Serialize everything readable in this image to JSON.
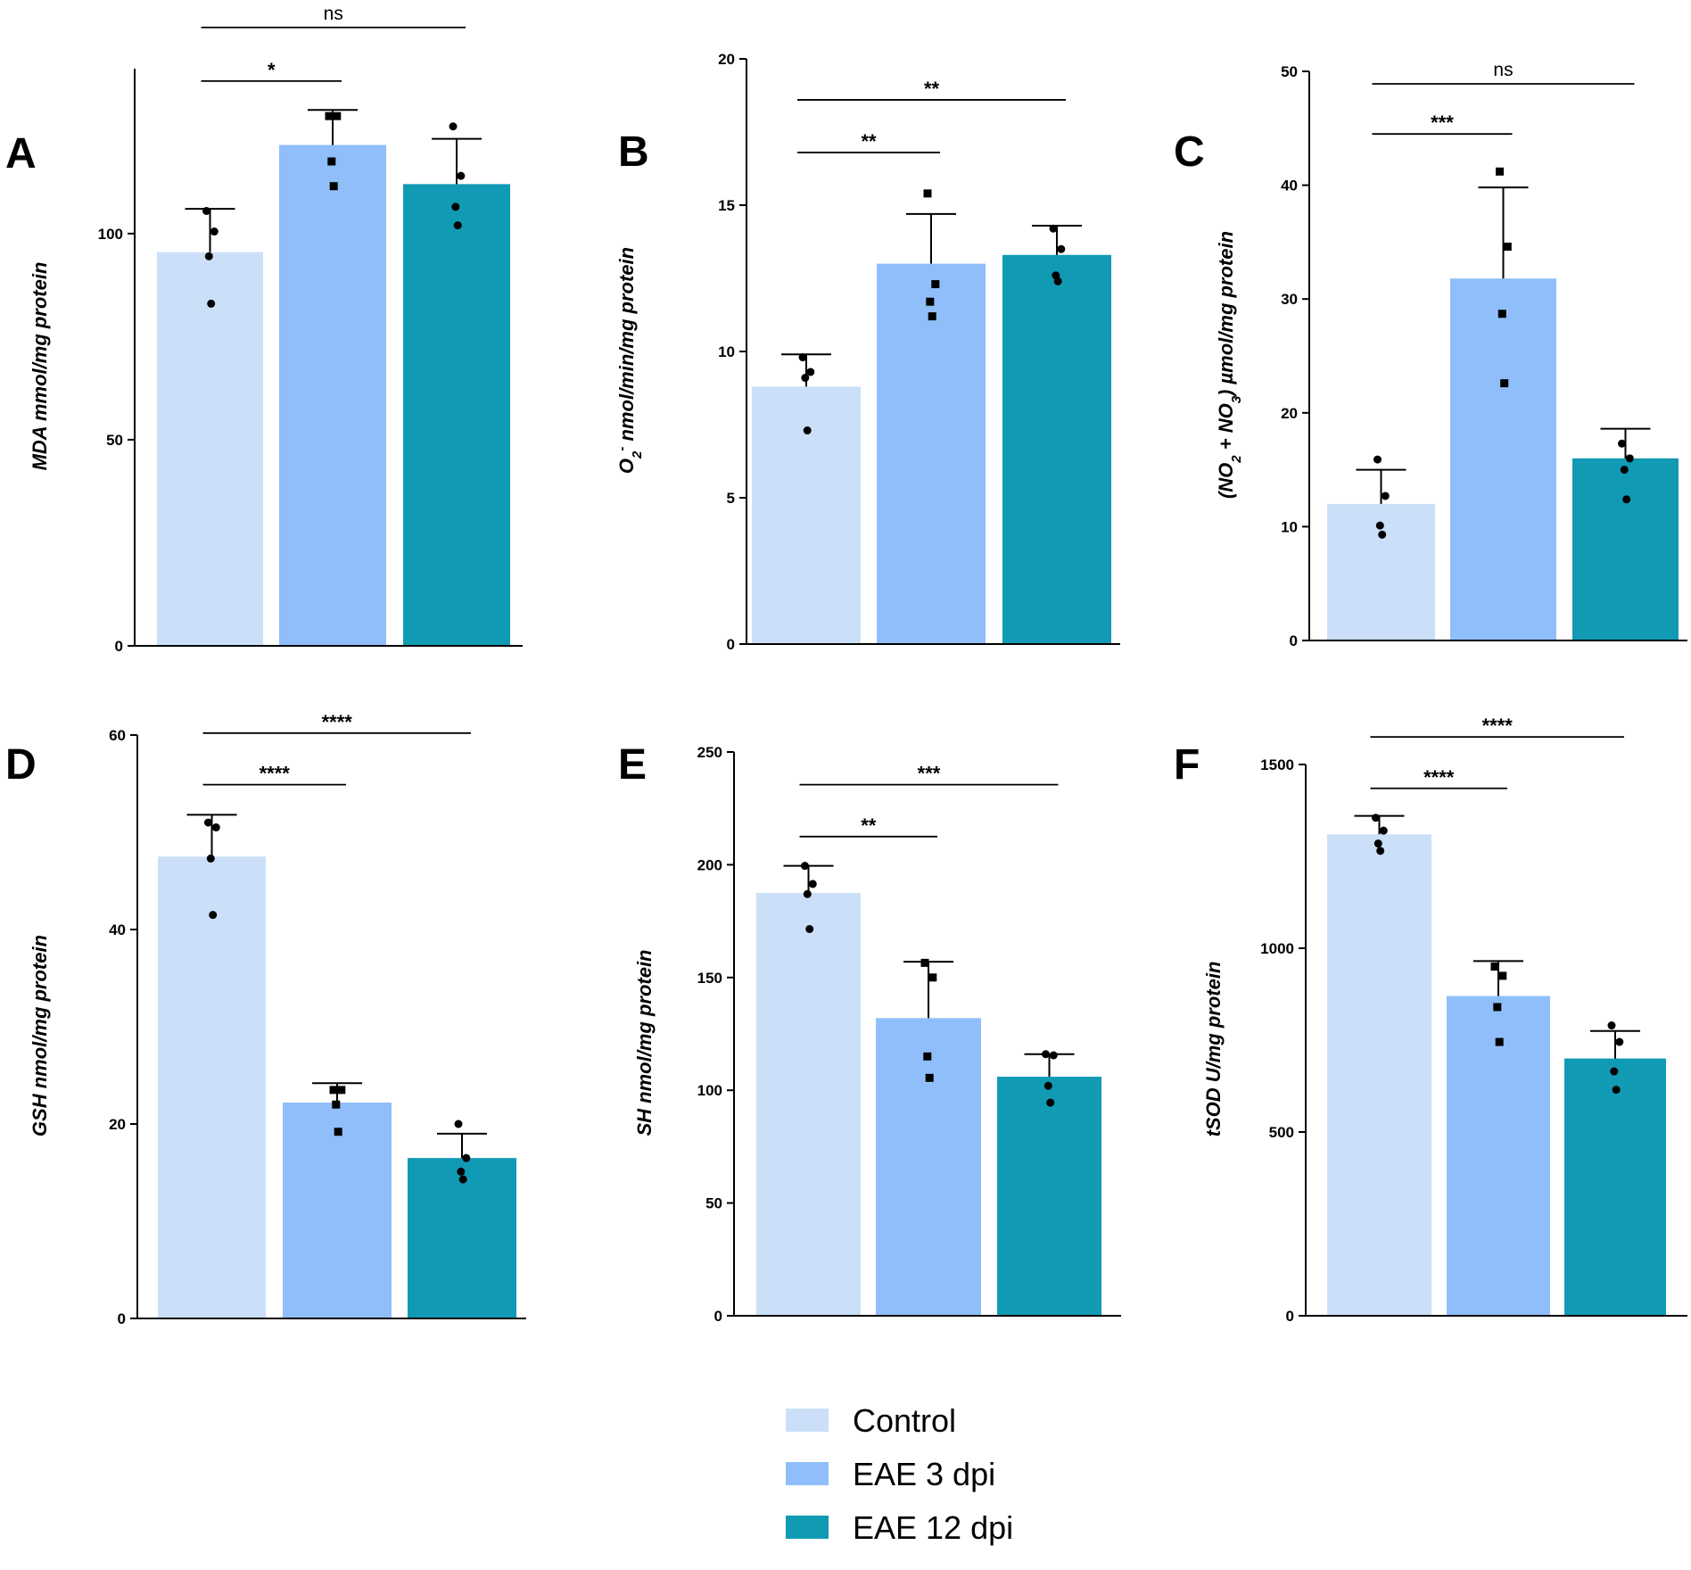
{
  "figure": {
    "legend": [
      {
        "label": "Control",
        "color": "#cbe0f8"
      },
      {
        "label": "EAE 3 dpi",
        "color": "#90befa"
      },
      {
        "label": "EAE 12 dpi",
        "color": "#119ab4"
      }
    ]
  },
  "chart_data": [
    {
      "panel": "A",
      "type": "bar",
      "ylabel_parts": [
        {
          "t": "MDA mmol/mg protein"
        }
      ],
      "ylim": [
        0,
        140
      ],
      "yticks": [
        0,
        50,
        100
      ],
      "categories": [
        "Control",
        "EAE 3 dpi",
        "EAE 12 dpi"
      ],
      "values": [
        95.5,
        121.5,
        112.0
      ],
      "errors": [
        10.5,
        8.5,
        11.0
      ],
      "points": [
        [
          105.5,
          100.5,
          94.5,
          83.0
        ],
        [
          128.5,
          128.5,
          117.5,
          111.5
        ],
        [
          126.0,
          114.0,
          106.5,
          102.0
        ]
      ],
      "markers": [
        "circle",
        "square",
        "circle"
      ],
      "significance": [
        {
          "from": 0,
          "to": 1,
          "label": "*",
          "y": 137
        },
        {
          "from": 0,
          "to": 2,
          "label": "ns",
          "y": 150
        }
      ]
    },
    {
      "panel": "B",
      "type": "bar",
      "ylabel_parts": [
        {
          "t": "O"
        },
        {
          "t": "2",
          "sub": true
        },
        {
          "t": "-",
          "sup": true
        },
        {
          "t": " nmol/min/mg protein"
        }
      ],
      "ylim": [
        0,
        20
      ],
      "yticks": [
        0,
        5,
        10,
        15,
        20
      ],
      "categories": [
        "Control",
        "EAE 3 dpi",
        "EAE 12 dpi"
      ],
      "values": [
        8.8,
        13.0,
        13.3
      ],
      "errors": [
        1.1,
        1.7,
        1.0
      ],
      "points": [
        [
          9.8,
          9.3,
          9.1,
          7.3
        ],
        [
          15.4,
          12.3,
          11.7,
          11.2
        ],
        [
          14.2,
          13.5,
          12.6,
          12.4
        ]
      ],
      "markers": [
        "circle",
        "square",
        "circle"
      ],
      "significance": [
        {
          "from": 0,
          "to": 1,
          "label": "**",
          "y": 16.8
        },
        {
          "from": 0,
          "to": 2,
          "label": "**",
          "y": 18.6
        }
      ]
    },
    {
      "panel": "C",
      "type": "bar",
      "ylabel_parts": [
        {
          "t": "(NO"
        },
        {
          "t": "2",
          "sub": true
        },
        {
          "t": " + NO"
        },
        {
          "t": "3",
          "sub": true
        },
        {
          "t": ") µmol/mg protein"
        }
      ],
      "ylim": [
        0,
        50
      ],
      "yticks": [
        0,
        10,
        20,
        30,
        40,
        50
      ],
      "categories": [
        "Control",
        "EAE 3 dpi",
        "EAE 12 dpi"
      ],
      "values": [
        12.0,
        31.8,
        16.0
      ],
      "errors": [
        3.0,
        8.0,
        2.6
      ],
      "points": [
        [
          15.9,
          12.7,
          10.1,
          9.3
        ],
        [
          41.2,
          34.6,
          28.7,
          22.6
        ],
        [
          17.3,
          16.0,
          15.0,
          12.4
        ]
      ],
      "markers": [
        "circle",
        "square",
        "circle"
      ],
      "significance": [
        {
          "from": 0,
          "to": 1,
          "label": "***",
          "y": 44.5
        },
        {
          "from": 0,
          "to": 2,
          "label": "ns",
          "y": 48.9
        }
      ]
    },
    {
      "panel": "D",
      "type": "bar",
      "ylabel_parts": [
        {
          "t": "GSH nmol/mg protein"
        }
      ],
      "ylim": [
        0,
        60
      ],
      "yticks": [
        0,
        20,
        40,
        60
      ],
      "categories": [
        "Control",
        "EAE 3 dpi",
        "EAE 12 dpi"
      ],
      "values": [
        47.5,
        22.2,
        16.5
      ],
      "errors": [
        4.3,
        2.0,
        2.5
      ],
      "points": [
        [
          51.0,
          50.5,
          47.3,
          41.5
        ],
        [
          23.5,
          23.5,
          22.0,
          19.2
        ],
        [
          20.0,
          16.5,
          15.1,
          14.3
        ]
      ],
      "markers": [
        "circle",
        "square",
        "circle"
      ],
      "significance": [
        {
          "from": 0,
          "to": 1,
          "label": "****",
          "y": 54.9
        },
        {
          "from": 0,
          "to": 2,
          "label": "****",
          "y": 60.2
        }
      ]
    },
    {
      "panel": "E",
      "type": "bar",
      "ylabel_parts": [
        {
          "t": "SH nmol/mg protein"
        }
      ],
      "ylim": [
        0,
        250
      ],
      "yticks": [
        0,
        50,
        100,
        150,
        200,
        250
      ],
      "categories": [
        "Control",
        "EAE 3 dpi",
        "EAE 12 dpi"
      ],
      "values": [
        187.5,
        132.0,
        106.0
      ],
      "errors": [
        12.0,
        25.0,
        10.0
      ],
      "points": [
        [
          199.5,
          191.5,
          187.0,
          171.5
        ],
        [
          156.5,
          150.0,
          115.0,
          105.5
        ],
        [
          116.0,
          115.5,
          102.0,
          94.5
        ]
      ],
      "markers": [
        "circle",
        "square",
        "circle"
      ],
      "significance": [
        {
          "from": 0,
          "to": 1,
          "label": "**",
          "y": 212.5
        },
        {
          "from": 0,
          "to": 2,
          "label": "***",
          "y": 235.5
        }
      ]
    },
    {
      "panel": "F",
      "type": "bar",
      "ylabel_parts": [
        {
          "t": "tSOD U/mg protein"
        }
      ],
      "ylim": [
        0,
        1500
      ],
      "yticks": [
        0,
        500,
        1000,
        1500
      ],
      "categories": [
        "Control",
        "EAE 3 dpi",
        "EAE 12 dpi"
      ],
      "values": [
        1310,
        870,
        700
      ],
      "errors": [
        50,
        95,
        75
      ],
      "points": [
        [
          1355,
          1320,
          1285,
          1265
        ],
        [
          950,
          925,
          840,
          745
        ],
        [
          790,
          745,
          665,
          615
        ]
      ],
      "markers": [
        "circle",
        "square",
        "circle"
      ],
      "significance": [
        {
          "from": 0,
          "to": 1,
          "label": "****",
          "y": 1435
        },
        {
          "from": 0,
          "to": 2,
          "label": "****",
          "y": 1575
        }
      ]
    }
  ]
}
